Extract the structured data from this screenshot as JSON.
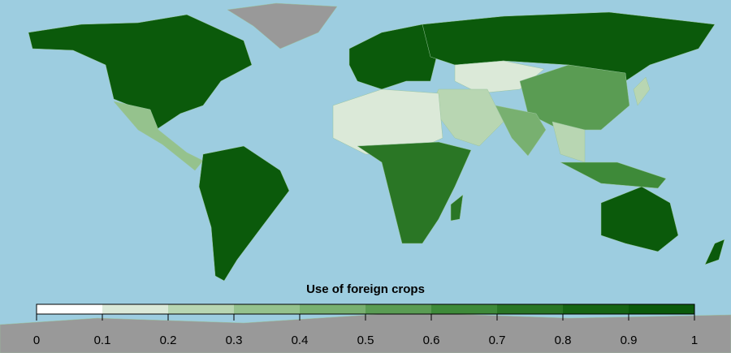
{
  "map": {
    "legend": {
      "title": "Use of foreign crops",
      "ticks": [
        0,
        0.1,
        0.2,
        0.3,
        0.4,
        0.5,
        0.6,
        0.7,
        0.8,
        0.9,
        1
      ],
      "colors": [
        "#ffffff",
        "#dbe9d8",
        "#b8d6b2",
        "#95c28d",
        "#78b070",
        "#5a9c53",
        "#3e8a39",
        "#2a7625",
        "#166514",
        "#0b5a0b"
      ]
    }
  }
}
